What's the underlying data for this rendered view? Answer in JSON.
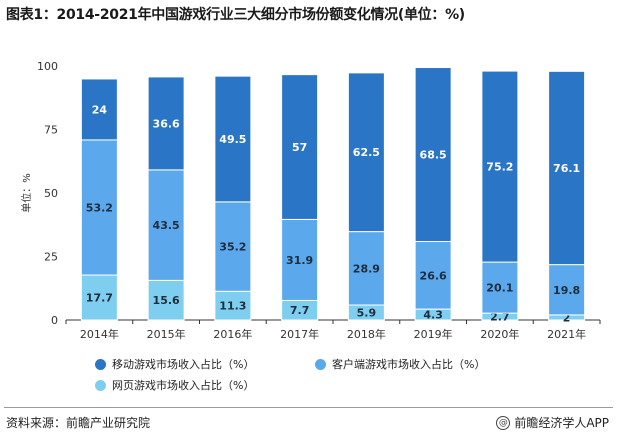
{
  "title": "图表1：2014-2021年中国游戏行业三大细分市场份额变化情况(单位：%)",
  "chart_data": {
    "type": "bar",
    "stacked": true,
    "categories": [
      "2014年",
      "2015年",
      "2016年",
      "2017年",
      "2018年",
      "2019年",
      "2020年",
      "2021年"
    ],
    "series": [
      {
        "name": "网页游戏市场收入占比（%）",
        "color": "#7ecfef",
        "values": [
          17.7,
          15.6,
          11.3,
          7.7,
          5.9,
          4.3,
          2.7,
          2
        ]
      },
      {
        "name": "客户端游戏市场收入占比（%）",
        "color": "#5ba8ec",
        "values": [
          53.2,
          43.5,
          35.2,
          31.9,
          28.9,
          26.6,
          20.1,
          19.8
        ]
      },
      {
        "name": "移动游戏市场收入占比（%）",
        "color": "#2a75c6",
        "values": [
          24,
          36.6,
          49.5,
          57,
          62.5,
          68.5,
          75.2,
          76.1
        ]
      }
    ],
    "ylabel": "单位：%",
    "ylim": [
      0,
      100
    ],
    "yticks": [
      0,
      25,
      50,
      75,
      100
    ],
    "grid": false,
    "legend_position": "bottom"
  },
  "legend": [
    {
      "label": "移动游戏市场收入占比（%）",
      "color": "#2a75c6"
    },
    {
      "label": "客户端游戏市场收入占比（%）",
      "color": "#5ba8ec"
    },
    {
      "label": "网页游戏市场收入占比（%）",
      "color": "#7ecfef"
    }
  ],
  "footer": {
    "source": "资料来源：前瞻产业研究院",
    "brand": "@前瞻经济学人APP",
    "brand_icon": "at-icon"
  }
}
